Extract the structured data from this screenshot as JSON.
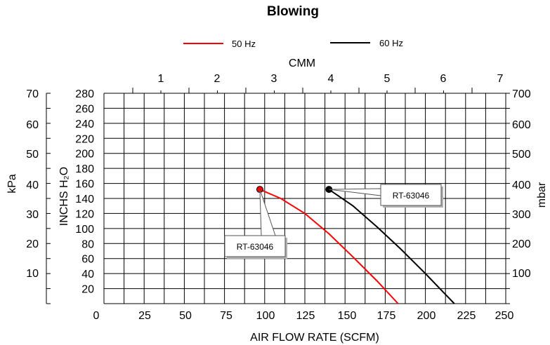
{
  "chart_data": {
    "type": "line",
    "title": "Blowing",
    "xlabel": "AIR FLOW RATE (SCFM)",
    "ylabel": "INCHS  H₂O",
    "x2label": "CMM",
    "y2label_left": "kPa",
    "y2label_right": "mbar",
    "xlim": [
      0,
      250
    ],
    "ylim": [
      0,
      280
    ],
    "grid": true,
    "legend_position": "top",
    "x_ticks": [
      "0",
      "25",
      "50",
      "75",
      "100",
      "125",
      "150",
      "175",
      "200",
      "225",
      "250"
    ],
    "y_ticks": [
      "20",
      "40",
      "60",
      "80",
      "100",
      "120",
      "140",
      "160",
      "180",
      "200",
      "220",
      "240",
      "260",
      "280"
    ],
    "cmm_ticks": [
      "1",
      "2",
      "3",
      "4",
      "5",
      "6",
      "7"
    ],
    "kpa_ticks": [
      "10",
      "20",
      "30",
      "40",
      "50",
      "60",
      "70"
    ],
    "mbar_ticks": [
      "100",
      "200",
      "300",
      "400",
      "500",
      "600",
      "700"
    ],
    "series": [
      {
        "name": "50 Hz",
        "color": "#ff0000",
        "x": [
          97,
          110,
          125,
          140,
          155,
          170,
          183
        ],
        "y": [
          152,
          140,
          120,
          93,
          62,
          30,
          0
        ],
        "marker_label": "RT-63046"
      },
      {
        "name": "60 Hz",
        "color": "#000000",
        "x": [
          140,
          155,
          170,
          185,
          200,
          218
        ],
        "y": [
          152,
          130,
          102,
          72,
          40,
          0
        ],
        "marker_label": "RT-63046"
      }
    ]
  }
}
